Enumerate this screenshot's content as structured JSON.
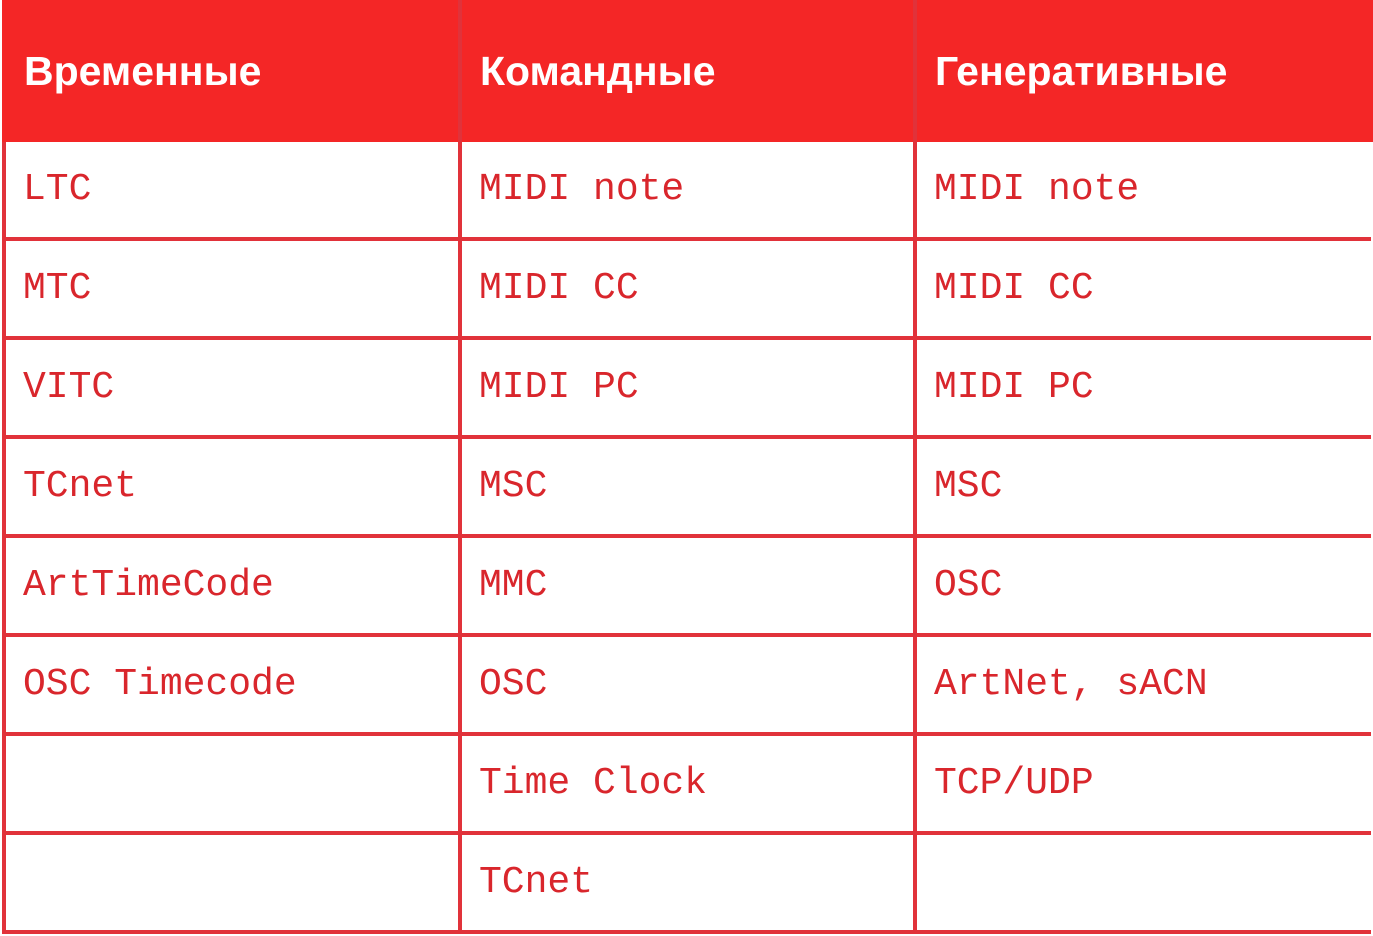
{
  "headers": [
    "Временные",
    "Командные",
    "Генеративные"
  ],
  "rows": [
    [
      "LTC",
      "MIDI note",
      "MIDI note"
    ],
    [
      "MTC",
      "MIDI CC",
      "MIDI CC"
    ],
    [
      "VITC",
      "MIDI PC",
      "MIDI PC"
    ],
    [
      "TCnet",
      "MSC",
      "MSC"
    ],
    [
      "ArtTimeCode",
      "MMC",
      "OSC"
    ],
    [
      "OSC Timecode",
      "OSC",
      "ArtNet, sACN"
    ],
    [
      "",
      "Time Clock",
      "TCP/UDP"
    ],
    [
      "",
      "TCnet",
      ""
    ]
  ],
  "colors": {
    "header_bg": "#f42626",
    "border": "#e1323a",
    "text": "#d9262c"
  }
}
